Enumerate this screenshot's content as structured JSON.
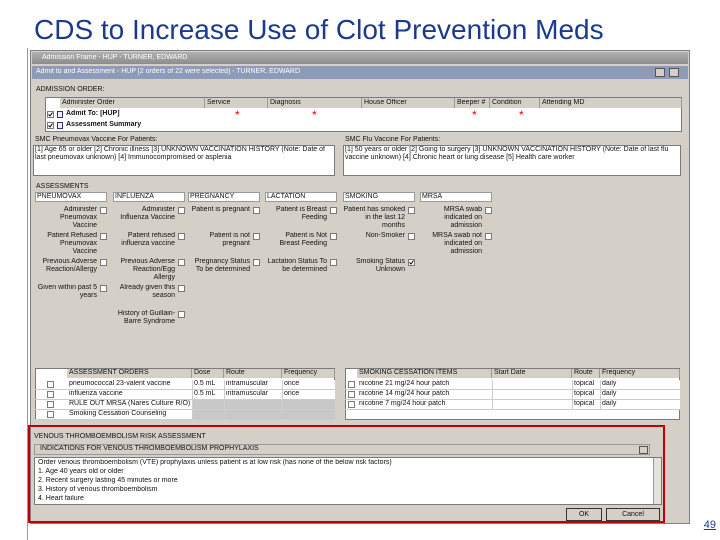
{
  "slide": {
    "title": "CDS to Increase Use of Clot Prevention Meds",
    "page_number": "49"
  },
  "window": {
    "title": "Admission Frame - HUP - TURNER, EDWARD",
    "subtitle": "Admit to and Assessment - HUP [2 orders of 22 were selected] - TURNER, EDWARD"
  },
  "admission_order": {
    "label": "ADMISSION ORDER:",
    "columns": [
      "Administer Order",
      "Service",
      "Diagnosis",
      "House Officer",
      "Beeper #",
      "Condition",
      "Attending MD"
    ],
    "rows": [
      "Admit To: [HUP]",
      "Assessment Summary"
    ],
    "required_marker": "*"
  },
  "vaccines": [
    {
      "label": "SMC Pneumovax Vaccine For Patients:",
      "text": "[1] Age 65 or older [2] Chronic illness [3] UNKNOWN VACCINATION HISTORY (Note: Date of last pneumovax unknown) [4] Immunocompromised or asplenia"
    },
    {
      "label": "SMC Flu Vaccine For Patients:",
      "text": "[1] 50 years or older [2] Going to surgery [3] UNKNOWN VACCINATION HISTORY (Note: Date of last flu vaccine unknown) [4] Chronic heart or lung disease [5] Health care worker"
    }
  ],
  "assessments": {
    "label": "ASSESSMENTS",
    "groups": [
      {
        "name": "PNEUMOVAX",
        "items": [
          {
            "label": "Administer Pneumovax Vaccine",
            "checked": false
          },
          {
            "label": "Patient Refused Pneumovax Vaccine",
            "checked": false
          },
          {
            "label": "Previous Adverse Reaction/Allergy",
            "checked": false
          },
          {
            "label": "Given within past 5 years",
            "checked": false
          }
        ]
      },
      {
        "name": "INFLUENZA",
        "items": [
          {
            "label": "Administer Influenza Vaccine",
            "checked": false
          },
          {
            "label": "Patient refused influenza vaccine",
            "checked": false
          },
          {
            "label": "Previous Adverse Reaction/Egg Allergy",
            "checked": false
          },
          {
            "label": "Already given this season",
            "checked": false
          },
          {
            "label": "History of Guillain-Barre Syndrome",
            "checked": false
          }
        ]
      },
      {
        "name": "PREGNANCY",
        "items": [
          {
            "label": "Patient is pregnant",
            "checked": false
          },
          {
            "label": "Patient is not pregnant",
            "checked": false
          },
          {
            "label": "Pregnancy Status To be determined",
            "checked": false
          }
        ]
      },
      {
        "name": "LACTATION",
        "items": [
          {
            "label": "Patient is Breast Feeding",
            "checked": false
          },
          {
            "label": "Patient is Not Breast Feeding",
            "checked": false
          },
          {
            "label": "Lactation Status To be determined",
            "checked": false
          }
        ]
      },
      {
        "name": "SMOKING",
        "items": [
          {
            "label": "Patient has smoked in the last 12 months",
            "checked": false
          },
          {
            "label": "Non-Smoker",
            "checked": false
          },
          {
            "label": "Smoking Status Unknown",
            "checked": true
          }
        ]
      },
      {
        "name": "MRSA",
        "items": [
          {
            "label": "MRSA swab indicated on admission",
            "checked": false
          },
          {
            "label": "MRSA swab not indicated on admission",
            "checked": false
          }
        ]
      }
    ]
  },
  "assessment_orders": {
    "columns": [
      "ASSESSMENT ORDERS",
      "Dose",
      "Route",
      "Frequency"
    ],
    "rows": [
      [
        "pneumococcal 23-valent vaccine",
        "0.5 mL",
        "intramuscular",
        "once"
      ],
      [
        "influenza vaccine",
        "0.5 mL",
        "intramuscular",
        "once"
      ],
      [
        "RULE OUT MRSA (Nares Culture R/O)"
      ],
      [
        "Smoking Cessation Counseling"
      ]
    ]
  },
  "smoking_items": {
    "columns": [
      "SMOKING CESSATION ITEMS",
      "Start Date",
      "Route",
      "Frequency"
    ],
    "rows": [
      [
        "nicotine 21 mg/24 hour patch",
        "",
        "topical",
        "daily"
      ],
      [
        "nicotine 14 mg/24 hour patch",
        "",
        "topical",
        "daily"
      ],
      [
        "nicotine 7 mg/24 hour patch",
        "",
        "topical",
        "daily"
      ]
    ]
  },
  "vte": {
    "section": "VENOUS THROMBOEMBOLISM RISK ASSESSMENT",
    "header": "INDICATIONS FOR VENOUS THROMBOEMBOLISM PROPHYLAXIS",
    "lines": [
      "Order venous thromboembolism (VTE) prophylaxis unless patient is at low risk (has none of the below risk factors)",
      "1. Age 40 years old or older",
      "2. Recent surgery lasting 45 minutes or more",
      "3. History of venous thromboembolism",
      "4. Heart failure"
    ]
  },
  "buttons": [
    "OK",
    "Cancel"
  ]
}
